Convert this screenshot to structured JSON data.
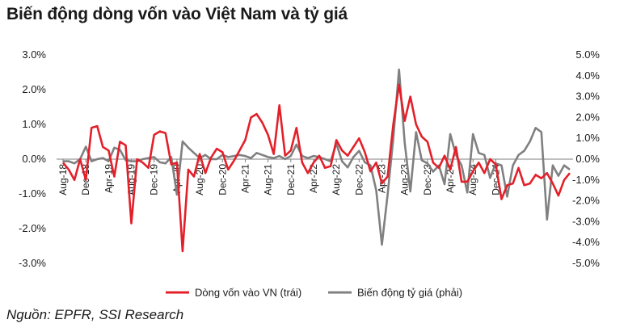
{
  "title": "Biến động dòng vốn vào Việt Nam và tỷ giá",
  "source": "Nguồn: EPFR, SSI Research",
  "chart_data": {
    "type": "line",
    "title": "Biến động dòng vốn vào Việt Nam và tỷ giá",
    "y_left": {
      "ylim": [
        -3.0,
        3.0
      ],
      "ticks": [
        3.0,
        2.0,
        1.0,
        0.0,
        -1.0,
        -2.0,
        -3.0
      ],
      "tick_labels": [
        "3.0%",
        "2.0%",
        "1.0%",
        "0.0%",
        "-1.0%",
        "-2.0%",
        "-3.0%"
      ]
    },
    "y_right": {
      "ylim": [
        -5.0,
        5.0
      ],
      "ticks": [
        5.0,
        4.0,
        3.0,
        2.0,
        1.0,
        0.0,
        -1.0,
        -2.0,
        -3.0,
        -4.0,
        -5.0
      ],
      "tick_labels": [
        "5.0%",
        "4.0%",
        "3.0%",
        "2.0%",
        "1.0%",
        "0.0%",
        "-1.0%",
        "-2.0%",
        "-3.0%",
        "-4.0%",
        "-5.0%"
      ]
    },
    "x_tick_labels": [
      "Aug-18",
      "Dec-18",
      "Apr-19",
      "Aug-19",
      "Dec-19",
      "Apr-20",
      "Aug-20",
      "Dec-20",
      "Apr-21",
      "Aug-21",
      "Dec-21",
      "Apr-22",
      "Aug-22",
      "Dec-22",
      "Apr-23",
      "Aug-23",
      "Dec-23",
      "Apr-24",
      "Aug-24",
      "Dec-24"
    ],
    "legend_placement": "bottom",
    "grid": false,
    "series": [
      {
        "name": "Dòng vốn vào VN (trái)",
        "axis": "left",
        "color": "#e3202a",
        "values": [
          -0.1,
          -0.3,
          -0.6,
          0.0,
          -0.6,
          0.9,
          0.95,
          0.35,
          0.25,
          -0.5,
          0.5,
          0.4,
          -1.85,
          0.0,
          -0.1,
          -0.25,
          0.7,
          0.8,
          0.75,
          -0.15,
          -0.1,
          -2.65,
          -0.3,
          -0.5,
          0.15,
          -0.4,
          0.05,
          0.3,
          0.2,
          -0.3,
          -0.05,
          0.25,
          0.55,
          1.2,
          1.3,
          1.05,
          0.7,
          0.15,
          1.55,
          0.1,
          0.25,
          0.9,
          -0.1,
          -0.4,
          -0.1,
          0.1,
          -0.25,
          -0.2,
          0.55,
          0.25,
          0.1,
          0.35,
          0.6,
          0.2,
          -0.35,
          -0.1,
          -0.7,
          -0.5,
          1.0,
          2.15,
          1.1,
          1.8,
          1.0,
          0.65,
          0.5,
          -0.1,
          -0.25,
          0.1,
          -0.3,
          0.35,
          -0.65,
          -0.65,
          -0.35,
          -0.1,
          -0.4,
          0.0,
          -0.15,
          -1.15,
          -0.75,
          -0.7,
          -0.25,
          -0.75,
          -0.7,
          -0.45,
          -0.55,
          -0.4,
          -0.7,
          -1.05,
          -0.6,
          -0.4
        ]
      },
      {
        "name": "Biến động tỷ giá (phải)",
        "axis": "right",
        "color": "#808080",
        "values": [
          -0.1,
          -0.1,
          -0.2,
          0.0,
          0.6,
          -0.1,
          0.0,
          0.05,
          -0.1,
          0.55,
          0.45,
          -0.05,
          -0.1,
          -0.1,
          0.0,
          0.05,
          0.1,
          -0.15,
          -0.2,
          0.1,
          -1.7,
          0.85,
          0.55,
          0.3,
          0.05,
          0.2,
          0.0,
          0.0,
          0.2,
          0.1,
          0.15,
          0.2,
          0.15,
          0.05,
          0.3,
          0.2,
          0.1,
          0.05,
          0.15,
          0.0,
          0.15,
          0.7,
          0.15,
          0.05,
          0.15,
          0.1,
          0.0,
          -0.1,
          0.75,
          -0.1,
          -0.4,
          0.1,
          0.4,
          -0.15,
          -0.3,
          -1.5,
          -4.1,
          -1.7,
          1.0,
          4.3,
          0.8,
          -1.55,
          1.3,
          -0.05,
          -0.2,
          -0.6,
          -0.3,
          -1.2,
          1.2,
          0.2,
          -0.3,
          -1.6,
          1.2,
          0.3,
          0.2,
          -0.9,
          -0.2,
          -0.3,
          -1.8,
          -0.3,
          0.2,
          0.4,
          0.85,
          1.5,
          1.3,
          -2.9,
          -0.3,
          -0.8,
          -0.3,
          -0.5
        ]
      }
    ]
  }
}
